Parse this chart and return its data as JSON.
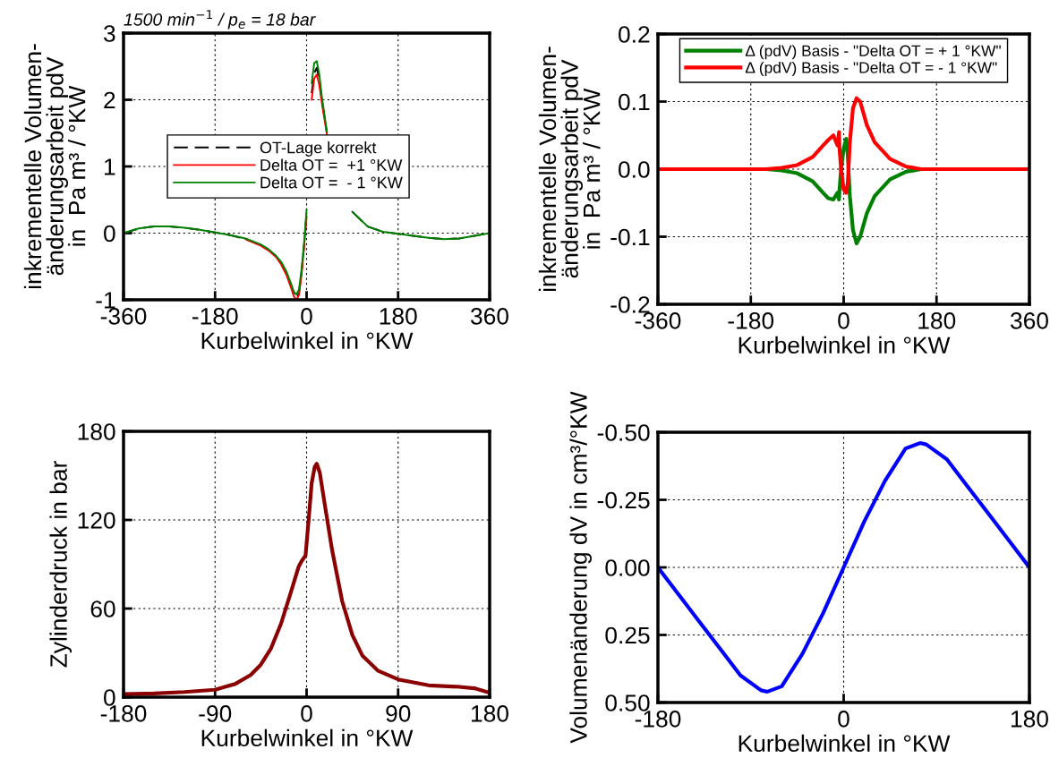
{
  "chart_data": [
    {
      "type": "line",
      "title": "1500 min$^{−1}$ / p$_{e}$ = 18 bar",
      "xlabel": "Kurbelwinkel in °KW",
      "ylabel": "inkrementelle Volumen-\nänderungsarbeit pdV\nin  Pa m³ / °KW",
      "x": [
        -360,
        -330,
        -300,
        -270,
        -240,
        -210,
        -180,
        -150,
        -120,
        -90,
        -75,
        -60,
        -50,
        -40,
        -30,
        -25,
        -20,
        -15,
        -10,
        -5,
        0,
        5,
        10,
        15,
        20,
        25,
        30,
        40,
        50,
        60,
        75,
        90,
        120,
        150,
        180,
        210,
        240,
        270,
        300,
        330,
        360
      ],
      "series": [
        {
          "name": "OT-Lage korrekt",
          "color": "#000000",
          "line_style": "dashed",
          "values": [
            0,
            0.07,
            0.1,
            0.1,
            0.08,
            0.05,
            0.01,
            -0.03,
            -0.09,
            -0.18,
            -0.25,
            -0.35,
            -0.45,
            -0.6,
            -0.8,
            -0.92,
            -0.98,
            -0.9,
            -0.6,
            -0.2,
            0.3,
            null,
            2.1,
            2.4,
            2.48,
            2.3,
            2.0,
            1.5,
            null,
            null,
            null,
            0.32,
            0.1,
            0.02,
            -0.01,
            -0.04,
            -0.07,
            -0.09,
            -0.08,
            -0.04,
            0
          ]
        },
        {
          "name": "Delta OT =  +1 °KW",
          "color": "#ff0000",
          "line_style": "solid",
          "values": [
            null,
            null,
            null,
            null,
            null,
            null,
            null,
            null,
            -0.09,
            -0.19,
            -0.26,
            -0.36,
            -0.47,
            -0.62,
            -0.83,
            -0.95,
            -1.0,
            -0.93,
            -0.63,
            -0.22,
            0.25,
            null,
            2.0,
            2.32,
            2.38,
            2.22,
            1.95,
            1.48,
            null,
            null,
            null,
            null,
            null,
            null,
            null,
            null,
            null,
            null,
            null,
            null,
            null
          ]
        },
        {
          "name": "Delta OT =  - 1 °KW",
          "color": "#008000",
          "line_style": "solid",
          "values": [
            0,
            0.07,
            0.1,
            0.1,
            0.08,
            0.05,
            0.01,
            -0.03,
            -0.08,
            -0.17,
            -0.24,
            -0.34,
            -0.43,
            -0.57,
            -0.77,
            -0.88,
            -0.92,
            -0.85,
            -0.55,
            -0.15,
            0.35,
            null,
            2.25,
            2.55,
            2.58,
            2.38,
            2.05,
            1.52,
            null,
            null,
            null,
            0.32,
            0.1,
            0.02,
            -0.01,
            -0.04,
            -0.07,
            -0.09,
            -0.08,
            -0.04,
            0
          ]
        }
      ],
      "xlim": [
        -360,
        360
      ],
      "ylim": [
        -1,
        3
      ],
      "xticks": [
        -360,
        -180,
        0,
        180,
        360
      ],
      "yticks": [
        -1,
        0,
        1,
        2,
        3
      ],
      "grid": true,
      "legend": "center"
    },
    {
      "type": "line",
      "xlabel": "Kurbelwinkel in °KW",
      "ylabel": "inkrementelle Volumen-\nänderungsarbeit pdV\nin  Pa m³ / °KW",
      "x": [
        -360,
        -240,
        -150,
        -120,
        -90,
        -60,
        -40,
        -30,
        -20,
        -12,
        -9,
        -8,
        -5,
        0,
        5,
        8,
        12,
        18,
        25,
        32,
        45,
        60,
        90,
        120,
        150,
        240,
        360
      ],
      "series": [
        {
          "name": "Δ (pdV) Basis - \"Delta OT = + 1 °KW\"",
          "color": "#008000",
          "line_style": "solid",
          "values": [
            0,
            0,
            0,
            -0.002,
            -0.006,
            -0.018,
            -0.035,
            -0.043,
            -0.045,
            -0.035,
            -0.045,
            -0.03,
            0.0,
            0.03,
            0.045,
            0.02,
            -0.04,
            -0.09,
            -0.11,
            -0.1,
            -0.065,
            -0.04,
            -0.015,
            -0.004,
            0,
            0,
            0
          ]
        },
        {
          "name": "Δ (pdV) Basis - \"Delta OT = - 1 °KW\"",
          "color": "#ff0000",
          "line_style": "solid",
          "values": [
            0,
            0,
            0,
            0.002,
            0.006,
            0.018,
            0.035,
            0.043,
            0.05,
            0.035,
            0.055,
            0.03,
            0,
            -0.03,
            -0.035,
            -0.02,
            0.04,
            0.09,
            0.105,
            0.1,
            0.065,
            0.04,
            0.015,
            0.004,
            0,
            0,
            0
          ]
        }
      ],
      "xlim": [
        -360,
        360
      ],
      "ylim": [
        -0.2,
        0.2
      ],
      "xticks": [
        -360,
        -180,
        0,
        180,
        360
      ],
      "yticks": [
        -0.2,
        -0.1,
        {
          "value": 0,
          "label": "0.0"
        },
        0.1,
        0.2
      ],
      "grid": true,
      "legend": "top"
    },
    {
      "type": "line",
      "xlabel": "Kurbelwinkel in °KW",
      "ylabel": "Zylinderdruck in bar",
      "x": [
        -180,
        -150,
        -120,
        -90,
        -70,
        -55,
        -45,
        -35,
        -25,
        -15,
        -8,
        -5,
        -1,
        2,
        5,
        8,
        10,
        13,
        18,
        25,
        35,
        45,
        55,
        70,
        90,
        120,
        150,
        165,
        180
      ],
      "series": [
        {
          "color": "#8b0000",
          "line_style": "solid",
          "values": [
            2,
            2.5,
            3.5,
            5,
            9,
            15,
            22,
            33,
            50,
            72,
            88,
            92,
            96,
            120,
            145,
            156,
            158,
            152,
            130,
            100,
            65,
            42,
            28,
            18,
            12,
            8,
            7,
            6,
            3
          ]
        }
      ],
      "xlim": [
        -180,
        180
      ],
      "ylim": [
        0,
        180
      ],
      "xticks": [
        -180,
        -90,
        0,
        90,
        180
      ],
      "yticks": [
        0,
        60,
        120,
        180
      ],
      "grid": true
    },
    {
      "type": "line",
      "xlabel": "Kurbelwinkel in °KW",
      "ylabel": "Volumenänderung dV in cm³/°KW",
      "x": [
        -180,
        -160,
        -140,
        -120,
        -100,
        -80,
        -74,
        -60,
        -40,
        -20,
        0,
        20,
        40,
        60,
        74,
        80,
        100,
        120,
        140,
        160,
        180
      ],
      "series": [
        {
          "color": "#0000ff",
          "line_style": "solid",
          "values": [
            0,
            0.1,
            0.2,
            0.3,
            0.4,
            0.455,
            0.46,
            0.44,
            0.32,
            0.17,
            0,
            -0.17,
            -0.32,
            -0.44,
            -0.46,
            -0.455,
            -0.4,
            -0.3,
            -0.2,
            -0.1,
            0
          ]
        }
      ],
      "xlim": [
        -180,
        180
      ],
      "ylim": [
        0.5,
        -0.5
      ],
      "xticks": [
        -180,
        0,
        180
      ],
      "yticks": [
        {
          "value": -0.5,
          "label": "-0.50"
        },
        {
          "value": -0.25,
          "label": "-0.25"
        },
        {
          "value": 0,
          "label": "0.00"
        },
        {
          "value": 0.25,
          "label": "0.25"
        },
        {
          "value": 0.5,
          "label": "0.50"
        }
      ],
      "grid": true
    }
  ]
}
